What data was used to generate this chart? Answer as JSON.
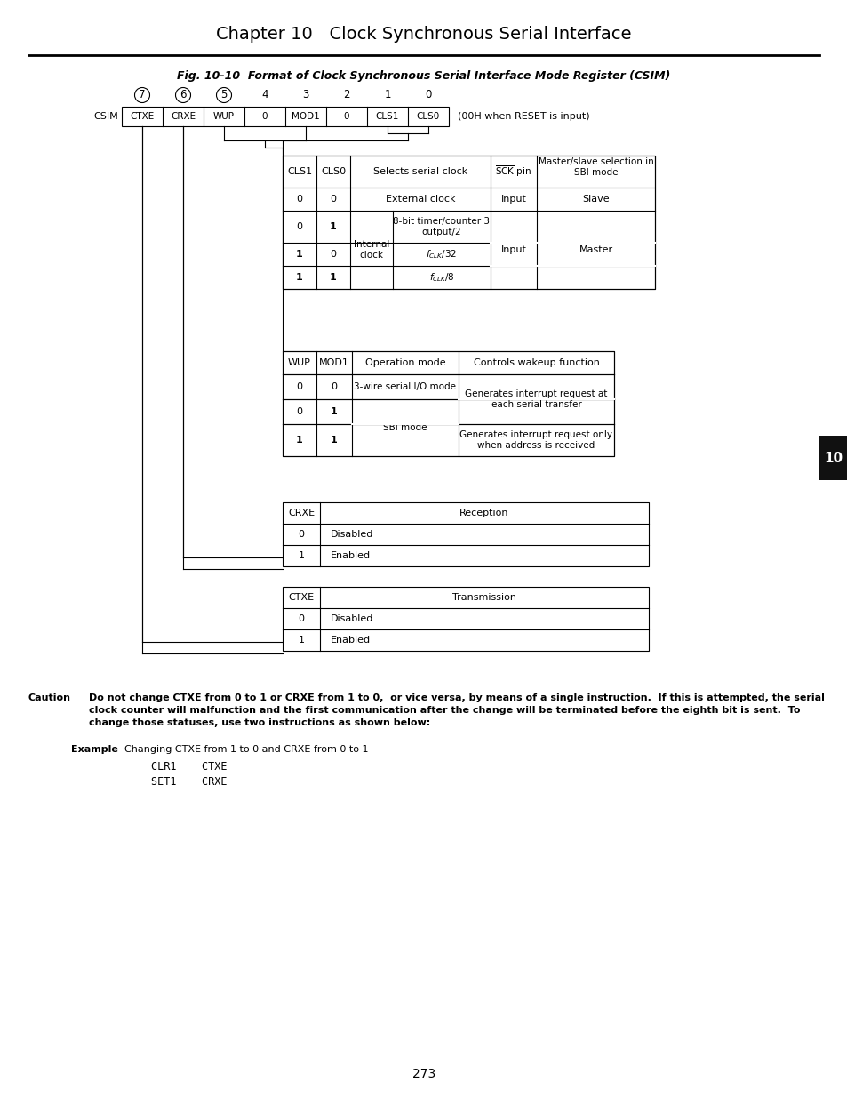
{
  "title": "Chapter 10   Clock Synchronous Serial Interface",
  "fig_title": "Fig. 10-10  Format of Clock Synchronous Serial Interface Mode Register (CSIM)",
  "page_number": "273",
  "bg_color": "#ffffff",
  "register_bits": [
    "CTXE",
    "CRXE",
    "WUP",
    "0",
    "MOD1",
    "0",
    "CLS1",
    "CLS0"
  ],
  "bit_numbers": [
    "7",
    "6",
    "5",
    "4",
    "3",
    "2",
    "1",
    "0"
  ],
  "circled_bits": [
    0,
    1,
    2
  ],
  "reset_note": "(00H when RESET is input)",
  "reg_label": "CSIM",
  "caution_bold": "Do not change CTXE from 0 to 1 or CRXE from 1 to 0,  or vice versa, by means of a single instruction.  If this is attempted, the serial clock counter will malfunction and the first communication after the change will be terminated before the eighth bit is sent.  To change those statuses, use two instructions as shown below:",
  "example_text": "Changing CTXE from 1 to 0 and CRXE from 0 to 1",
  "code1": "CLR1    CTXE",
  "code2": "SET1    CRXE"
}
